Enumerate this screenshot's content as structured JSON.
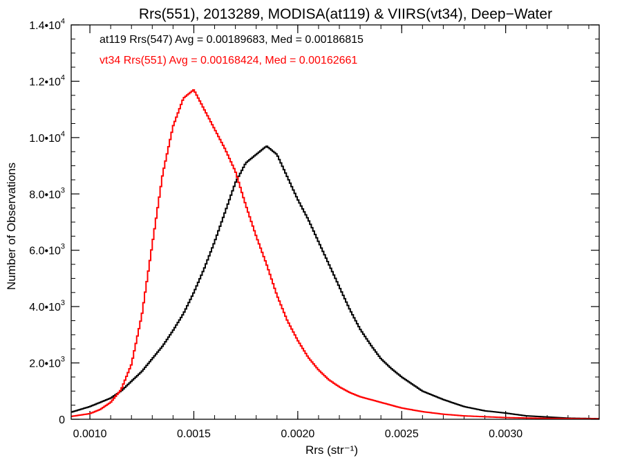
{
  "chart_data": {
    "type": "line",
    "title": "Rrs(551), 2013289, MODISA(at119) & VIIRS(vt34), Deep−Water",
    "xlabel": "Rrs (str⁻¹)",
    "ylabel": "Number of Observations",
    "xlim": [
      0.00091,
      0.00345
    ],
    "ylim": [
      0,
      14000
    ],
    "grid": false,
    "legend_position": "top-left",
    "x_ticks": [
      {
        "value": 0.001,
        "label": "0.0010"
      },
      {
        "value": 0.0015,
        "label": "0.0015"
      },
      {
        "value": 0.002,
        "label": "0.0020"
      },
      {
        "value": 0.0025,
        "label": "0.0025"
      },
      {
        "value": 0.003,
        "label": "0.0030"
      }
    ],
    "y_ticks": [
      {
        "value": 0,
        "mant": "0",
        "exp": ""
      },
      {
        "value": 2000,
        "mant": "2.0•10",
        "exp": "3"
      },
      {
        "value": 4000,
        "mant": "4.0•10",
        "exp": "3"
      },
      {
        "value": 6000,
        "mant": "6.0•10",
        "exp": "3"
      },
      {
        "value": 8000,
        "mant": "8.0•10",
        "exp": "3"
      },
      {
        "value": 10000,
        "mant": "1.0•10",
        "exp": "4"
      },
      {
        "value": 12000,
        "mant": "1.2•10",
        "exp": "4"
      },
      {
        "value": 14000,
        "mant": "1.4•10",
        "exp": "4"
      }
    ],
    "series": [
      {
        "legend": "at119 Rrs(547) Avg = 0.00189683, Med = 0.00186815",
        "color": "#000000",
        "x": [
          0.00091,
          0.001,
          0.0011,
          0.00115,
          0.0012,
          0.00125,
          0.0013,
          0.00135,
          0.0014,
          0.00145,
          0.0015,
          0.00155,
          0.0016,
          0.00165,
          0.0017,
          0.00175,
          0.0018,
          0.00185,
          0.0019,
          0.00195,
          0.002,
          0.00205,
          0.0021,
          0.00215,
          0.0022,
          0.00225,
          0.0023,
          0.00235,
          0.0024,
          0.00245,
          0.0025,
          0.00255,
          0.0026,
          0.0027,
          0.0028,
          0.0029,
          0.003,
          0.0031,
          0.0032,
          0.0033,
          0.00345
        ],
        "y": [
          250,
          450,
          750,
          1000,
          1350,
          1700,
          2150,
          2600,
          3150,
          3750,
          4500,
          5350,
          6300,
          7350,
          8400,
          9100,
          9400,
          9700,
          9400,
          8600,
          7800,
          7100,
          6300,
          5500,
          4700,
          3900,
          3200,
          2650,
          2150,
          1800,
          1500,
          1250,
          1000,
          700,
          450,
          300,
          220,
          120,
          80,
          40,
          20
        ]
      },
      {
        "legend": "vt34 Rrs(551) Avg = 0.00168424, Med = 0.00162661",
        "color": "#ff0000",
        "x": [
          0.00091,
          0.001,
          0.00105,
          0.0011,
          0.00115,
          0.0012,
          0.00125,
          0.0013,
          0.00135,
          0.0014,
          0.00145,
          0.0015,
          0.00155,
          0.0016,
          0.00165,
          0.0017,
          0.00175,
          0.0018,
          0.00185,
          0.0019,
          0.00195,
          0.002,
          0.00205,
          0.0021,
          0.00215,
          0.0022,
          0.00225,
          0.0023,
          0.0024,
          0.0025,
          0.0026,
          0.0027,
          0.0028,
          0.003,
          0.0032,
          0.00345
        ],
        "y": [
          100,
          200,
          350,
          600,
          1050,
          1950,
          3700,
          6200,
          8700,
          10400,
          11400,
          11700,
          11000,
          10300,
          9600,
          8800,
          7600,
          6500,
          5500,
          4400,
          3500,
          2800,
          2200,
          1750,
          1400,
          1150,
          950,
          800,
          600,
          400,
          270,
          180,
          120,
          60,
          30,
          15
        ]
      }
    ]
  }
}
